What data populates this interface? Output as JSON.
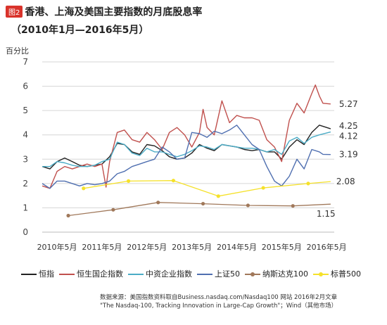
{
  "header": {
    "fig_tag": "图2",
    "title": "香港、上海及美国主要指数的月底股息率",
    "subtitle": "（2010年1月—2016年5月）"
  },
  "source": {
    "line1": "数据来源：美国指数资料取自Business.nasdaq.com/Nasdaq100 网站 2016年2月文章",
    "line2": "\"The Nasdaq-100, Tracking Innovation in Large-Cap Growth\"；Wind（其他市场）"
  },
  "chart_data": {
    "type": "line",
    "title": "香港、上海及美国主要指数的月底股息率",
    "ylabel": "百分比",
    "xlabel": "",
    "ylim": [
      0,
      7
    ],
    "yticks": [
      0,
      1,
      2,
      3,
      4,
      5,
      6,
      7
    ],
    "xlim": [
      2010.0,
      2016.5
    ],
    "xticks": [
      {
        "x": 2010.33,
        "label": "2010年5月"
      },
      {
        "x": 2011.33,
        "label": "2011年5月"
      },
      {
        "x": 2012.33,
        "label": "2012年5月"
      },
      {
        "x": 2013.33,
        "label": "2013年5月"
      },
      {
        "x": 2014.33,
        "label": "2014年5月"
      },
      {
        "x": 2015.33,
        "label": "2015年5月"
      },
      {
        "x": 2016.33,
        "label": "2016年5月"
      }
    ],
    "grid": true,
    "legend": "bottom",
    "annotations": [
      {
        "text": "5.27",
        "x": 2016.42,
        "y": 5.27
      },
      {
        "text": "4.25",
        "x": 2016.42,
        "y": 4.25
      },
      {
        "text": "4.12",
        "x": 2016.42,
        "y": 4.12
      },
      {
        "text": "3.19",
        "x": 2016.42,
        "y": 3.19
      },
      {
        "text": "2.08",
        "x": 2016.42,
        "y": 2.08
      },
      {
        "text": "1.15",
        "x": 2016.42,
        "y": 1.15
      }
    ],
    "series": [
      {
        "name": "恒指",
        "color": "#222222",
        "x": [
          2010.0,
          2010.17,
          2010.33,
          2010.5,
          2010.67,
          2010.83,
          2011.0,
          2011.17,
          2011.33,
          2011.5,
          2011.67,
          2011.83,
          2012.0,
          2012.17,
          2012.33,
          2012.5,
          2012.67,
          2012.83,
          2013.0,
          2013.17,
          2013.33,
          2013.5,
          2013.67,
          2013.83,
          2014.0,
          2014.17,
          2014.33,
          2014.5,
          2014.67,
          2014.83,
          2015.0,
          2015.17,
          2015.33,
          2015.5,
          2015.67,
          2015.83,
          2016.0,
          2016.17,
          2016.42
        ],
        "y": [
          2.7,
          2.6,
          2.9,
          3.05,
          2.9,
          2.75,
          2.7,
          2.75,
          2.8,
          3.1,
          3.65,
          3.6,
          3.3,
          3.2,
          3.6,
          3.55,
          3.35,
          3.1,
          3.0,
          3.05,
          3.25,
          3.6,
          3.45,
          3.35,
          3.6,
          3.55,
          3.5,
          3.4,
          3.35,
          3.4,
          3.3,
          3.3,
          3.0,
          3.5,
          3.8,
          3.6,
          4.1,
          4.4,
          4.25
        ]
      },
      {
        "name": "恒生国企指数",
        "color": "#c0504d",
        "x": [
          2010.0,
          2010.17,
          2010.33,
          2010.5,
          2010.67,
          2010.83,
          2011.0,
          2011.17,
          2011.33,
          2011.42,
          2011.5,
          2011.67,
          2011.83,
          2012.0,
          2012.17,
          2012.33,
          2012.5,
          2012.67,
          2012.83,
          2013.0,
          2013.17,
          2013.33,
          2013.5,
          2013.58,
          2013.67,
          2013.83,
          2014.0,
          2014.17,
          2014.33,
          2014.5,
          2014.67,
          2014.83,
          2015.0,
          2015.17,
          2015.33,
          2015.5,
          2015.67,
          2015.83,
          2016.0,
          2016.08,
          2016.17,
          2016.25,
          2016.42
        ],
        "y": [
          1.9,
          1.8,
          2.5,
          2.7,
          2.6,
          2.7,
          2.8,
          2.7,
          2.8,
          1.85,
          2.9,
          4.1,
          4.2,
          3.8,
          3.7,
          4.1,
          3.8,
          3.4,
          4.1,
          4.3,
          4.0,
          3.5,
          4.1,
          5.05,
          4.3,
          4.0,
          5.4,
          4.5,
          4.8,
          4.7,
          4.7,
          4.6,
          3.8,
          3.5,
          2.9,
          4.6,
          5.3,
          4.9,
          5.7,
          6.05,
          5.6,
          5.3,
          5.27
        ]
      },
      {
        "name": "中资企业指数",
        "color": "#4bacc6",
        "x": [
          2010.0,
          2010.17,
          2010.33,
          2010.5,
          2010.67,
          2010.83,
          2011.0,
          2011.17,
          2011.33,
          2011.5,
          2011.67,
          2011.83,
          2012.0,
          2012.17,
          2012.33,
          2012.5,
          2012.67,
          2012.83,
          2013.0,
          2013.17,
          2013.33,
          2013.5,
          2013.67,
          2013.83,
          2014.0,
          2014.17,
          2014.33,
          2014.5,
          2014.67,
          2014.83,
          2015.0,
          2015.17,
          2015.33,
          2015.5,
          2015.67,
          2015.83,
          2016.0,
          2016.17,
          2016.42
        ],
        "y": [
          2.7,
          2.7,
          2.9,
          2.85,
          2.75,
          2.7,
          2.7,
          2.75,
          2.9,
          3.0,
          3.7,
          3.6,
          3.25,
          3.15,
          3.45,
          3.3,
          3.3,
          3.2,
          3.1,
          3.2,
          3.35,
          3.55,
          3.5,
          3.4,
          3.6,
          3.55,
          3.5,
          3.45,
          3.45,
          3.4,
          3.3,
          3.4,
          3.2,
          3.75,
          3.9,
          3.65,
          3.9,
          4.0,
          4.12
        ]
      },
      {
        "name": "上证50",
        "color": "#4f6fb0",
        "x": [
          2010.0,
          2010.17,
          2010.33,
          2010.5,
          2010.67,
          2010.83,
          2011.0,
          2011.17,
          2011.33,
          2011.5,
          2011.67,
          2011.83,
          2012.0,
          2012.17,
          2012.33,
          2012.5,
          2012.67,
          2012.83,
          2013.0,
          2013.17,
          2013.33,
          2013.5,
          2013.67,
          2013.83,
          2014.0,
          2014.17,
          2014.33,
          2014.5,
          2014.67,
          2014.83,
          2015.0,
          2015.17,
          2015.33,
          2015.5,
          2015.67,
          2015.83,
          2016.0,
          2016.17,
          2016.25,
          2016.42
        ],
        "y": [
          2.0,
          1.8,
          2.1,
          2.1,
          2.0,
          1.9,
          2.0,
          1.95,
          2.0,
          2.1,
          2.4,
          2.5,
          2.7,
          2.8,
          2.9,
          3.0,
          3.5,
          3.3,
          3.0,
          3.05,
          4.1,
          4.05,
          3.9,
          4.15,
          4.05,
          4.2,
          4.4,
          4.0,
          3.6,
          3.4,
          2.7,
          2.1,
          1.9,
          2.3,
          3.0,
          2.6,
          3.4,
          3.3,
          3.2,
          3.19
        ]
      },
      {
        "name": "纳斯达克100",
        "color": "#a0785a",
        "marker": "circle",
        "x": [
          2010.58,
          2011.58,
          2012.58,
          2013.58,
          2014.58,
          2015.58,
          2016.42
        ],
        "y": [
          0.68,
          0.92,
          1.22,
          1.17,
          1.1,
          1.08,
          1.15
        ]
      },
      {
        "name": "标普500",
        "color": "#f5e12a",
        "marker": "circle",
        "x": [
          2010.92,
          2011.92,
          2012.92,
          2013.92,
          2014.92,
          2015.92,
          2016.42
        ],
        "y": [
          1.8,
          2.1,
          2.12,
          1.48,
          1.82,
          2.0,
          2.08
        ]
      }
    ]
  }
}
